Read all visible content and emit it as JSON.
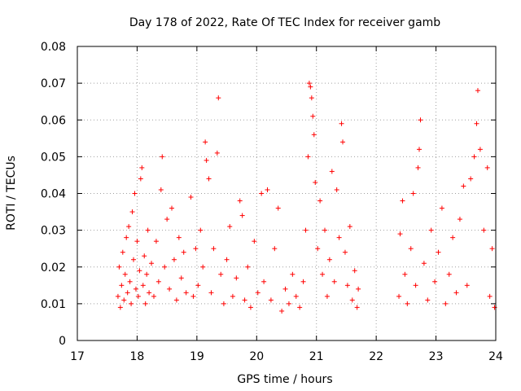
{
  "chart_data": {
    "type": "scatter",
    "title": "Day 178 of 2022, Rate Of TEC Index for receiver gamb",
    "xlabel": "GPS time / hours",
    "ylabel": "ROTI / TECUs",
    "xlim": [
      17,
      24
    ],
    "ylim": [
      0,
      0.08
    ],
    "xticks": [
      17,
      18,
      19,
      20,
      21,
      22,
      23,
      24
    ],
    "xtick_labels": [
      "17",
      "18",
      "19",
      "20",
      "21",
      "22",
      "23",
      "24"
    ],
    "yticks": [
      0,
      0.01,
      0.02,
      0.03,
      0.04,
      0.05,
      0.06,
      0.07,
      0.08
    ],
    "ytick_labels": [
      "0",
      "0.01",
      "0.02",
      "0.03",
      "0.04",
      "0.05",
      "0.06",
      "0.07",
      "0.08"
    ],
    "grid": true,
    "marker": "+",
    "color": "#ff0000",
    "series": [
      {
        "name": "ROTI",
        "points": [
          [
            17.68,
            0.012
          ],
          [
            17.7,
            0.02
          ],
          [
            17.72,
            0.009
          ],
          [
            17.74,
            0.015
          ],
          [
            17.76,
            0.024
          ],
          [
            17.78,
            0.011
          ],
          [
            17.8,
            0.018
          ],
          [
            17.82,
            0.028
          ],
          [
            17.84,
            0.013
          ],
          [
            17.86,
            0.031
          ],
          [
            17.88,
            0.016
          ],
          [
            17.9,
            0.01
          ],
          [
            17.92,
            0.035
          ],
          [
            17.94,
            0.022
          ],
          [
            17.96,
            0.04
          ],
          [
            17.98,
            0.014
          ],
          [
            18.0,
            0.027
          ],
          [
            18.02,
            0.012
          ],
          [
            18.04,
            0.019
          ],
          [
            18.06,
            0.044
          ],
          [
            18.08,
            0.047
          ],
          [
            18.1,
            0.015
          ],
          [
            18.12,
            0.023
          ],
          [
            18.14,
            0.01
          ],
          [
            18.16,
            0.018
          ],
          [
            18.18,
            0.03
          ],
          [
            18.2,
            0.013
          ],
          [
            18.24,
            0.021
          ],
          [
            18.28,
            0.012
          ],
          [
            18.32,
            0.027
          ],
          [
            18.36,
            0.016
          ],
          [
            18.4,
            0.041
          ],
          [
            18.42,
            0.05
          ],
          [
            18.46,
            0.02
          ],
          [
            18.5,
            0.033
          ],
          [
            18.54,
            0.014
          ],
          [
            18.58,
            0.036
          ],
          [
            18.62,
            0.022
          ],
          [
            18.66,
            0.011
          ],
          [
            18.7,
            0.028
          ],
          [
            18.74,
            0.017
          ],
          [
            18.78,
            0.024
          ],
          [
            18.82,
            0.013
          ],
          [
            18.9,
            0.039
          ],
          [
            18.94,
            0.012
          ],
          [
            18.98,
            0.025
          ],
          [
            19.02,
            0.015
          ],
          [
            19.06,
            0.03
          ],
          [
            19.1,
            0.02
          ],
          [
            19.14,
            0.054
          ],
          [
            19.16,
            0.049
          ],
          [
            19.2,
            0.044
          ],
          [
            19.24,
            0.013
          ],
          [
            19.28,
            0.025
          ],
          [
            19.34,
            0.051
          ],
          [
            19.36,
            0.066
          ],
          [
            19.4,
            0.018
          ],
          [
            19.45,
            0.01
          ],
          [
            19.5,
            0.022
          ],
          [
            19.55,
            0.031
          ],
          [
            19.6,
            0.012
          ],
          [
            19.66,
            0.017
          ],
          [
            19.72,
            0.038
          ],
          [
            19.76,
            0.034
          ],
          [
            19.8,
            0.011
          ],
          [
            19.85,
            0.02
          ],
          [
            19.9,
            0.009
          ],
          [
            19.96,
            0.027
          ],
          [
            20.02,
            0.013
          ],
          [
            20.08,
            0.04
          ],
          [
            20.12,
            0.016
          ],
          [
            20.18,
            0.041
          ],
          [
            20.24,
            0.011
          ],
          [
            20.3,
            0.025
          ],
          [
            20.36,
            0.036
          ],
          [
            20.42,
            0.008
          ],
          [
            20.48,
            0.014
          ],
          [
            20.54,
            0.01
          ],
          [
            20.6,
            0.018
          ],
          [
            20.66,
            0.012
          ],
          [
            20.72,
            0.009
          ],
          [
            20.78,
            0.016
          ],
          [
            20.82,
            0.03
          ],
          [
            20.86,
            0.05
          ],
          [
            20.88,
            0.07
          ],
          [
            20.9,
            0.069
          ],
          [
            20.92,
            0.066
          ],
          [
            20.94,
            0.061
          ],
          [
            20.96,
            0.056
          ],
          [
            20.98,
            0.043
          ],
          [
            21.02,
            0.025
          ],
          [
            21.06,
            0.038
          ],
          [
            21.1,
            0.018
          ],
          [
            21.14,
            0.03
          ],
          [
            21.18,
            0.012
          ],
          [
            21.22,
            0.022
          ],
          [
            21.26,
            0.046
          ],
          [
            21.3,
            0.016
          ],
          [
            21.34,
            0.041
          ],
          [
            21.38,
            0.028
          ],
          [
            21.42,
            0.059
          ],
          [
            21.44,
            0.054
          ],
          [
            21.48,
            0.024
          ],
          [
            21.52,
            0.015
          ],
          [
            21.56,
            0.031
          ],
          [
            21.6,
            0.011
          ],
          [
            21.64,
            0.019
          ],
          [
            21.68,
            0.009
          ],
          [
            21.7,
            0.014
          ],
          [
            22.38,
            0.012
          ],
          [
            22.4,
            0.029
          ],
          [
            22.44,
            0.038
          ],
          [
            22.48,
            0.018
          ],
          [
            22.52,
            0.01
          ],
          [
            22.58,
            0.025
          ],
          [
            22.62,
            0.04
          ],
          [
            22.66,
            0.015
          ],
          [
            22.7,
            0.047
          ],
          [
            22.72,
            0.052
          ],
          [
            22.74,
            0.06
          ],
          [
            22.8,
            0.021
          ],
          [
            22.86,
            0.011
          ],
          [
            22.92,
            0.03
          ],
          [
            22.98,
            0.016
          ],
          [
            23.04,
            0.024
          ],
          [
            23.1,
            0.036
          ],
          [
            23.16,
            0.01
          ],
          [
            23.22,
            0.018
          ],
          [
            23.28,
            0.028
          ],
          [
            23.34,
            0.013
          ],
          [
            23.4,
            0.033
          ],
          [
            23.46,
            0.042
          ],
          [
            23.52,
            0.015
          ],
          [
            23.58,
            0.044
          ],
          [
            23.64,
            0.05
          ],
          [
            23.68,
            0.059
          ],
          [
            23.7,
            0.068
          ],
          [
            23.74,
            0.052
          ],
          [
            23.8,
            0.03
          ],
          [
            23.86,
            0.047
          ],
          [
            23.9,
            0.012
          ],
          [
            23.94,
            0.025
          ],
          [
            23.98,
            0.009
          ]
        ]
      }
    ]
  }
}
